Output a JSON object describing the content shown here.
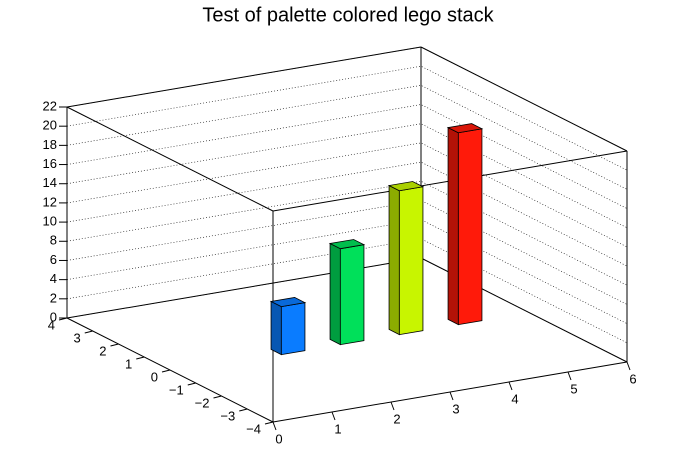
{
  "chart_data": {
    "type": "lego3d",
    "title": "Test of palette colored lego stack",
    "x": [
      2,
      3,
      4,
      5
    ],
    "values": [
      5,
      10,
      15,
      20
    ],
    "colors": [
      "#0a7cff",
      "#00e05a",
      "#c8f500",
      "#ff1a0a"
    ],
    "xlim": [
      0,
      6
    ],
    "xticks": [
      0,
      1,
      2,
      3,
      4,
      5,
      6
    ],
    "ylim": [
      -4,
      4
    ],
    "yticks": [
      {
        "value": -4,
        "label": "−4"
      },
      {
        "value": -3,
        "label": "−3"
      },
      {
        "value": -2,
        "label": "−2"
      },
      {
        "value": -1,
        "label": "−1"
      },
      0,
      1,
      2,
      3,
      4
    ],
    "zlim": [
      0,
      22
    ],
    "zticks": [
      0,
      2,
      4,
      6,
      8,
      10,
      12,
      14,
      16,
      18,
      20,
      22
    ],
    "grid": true
  }
}
